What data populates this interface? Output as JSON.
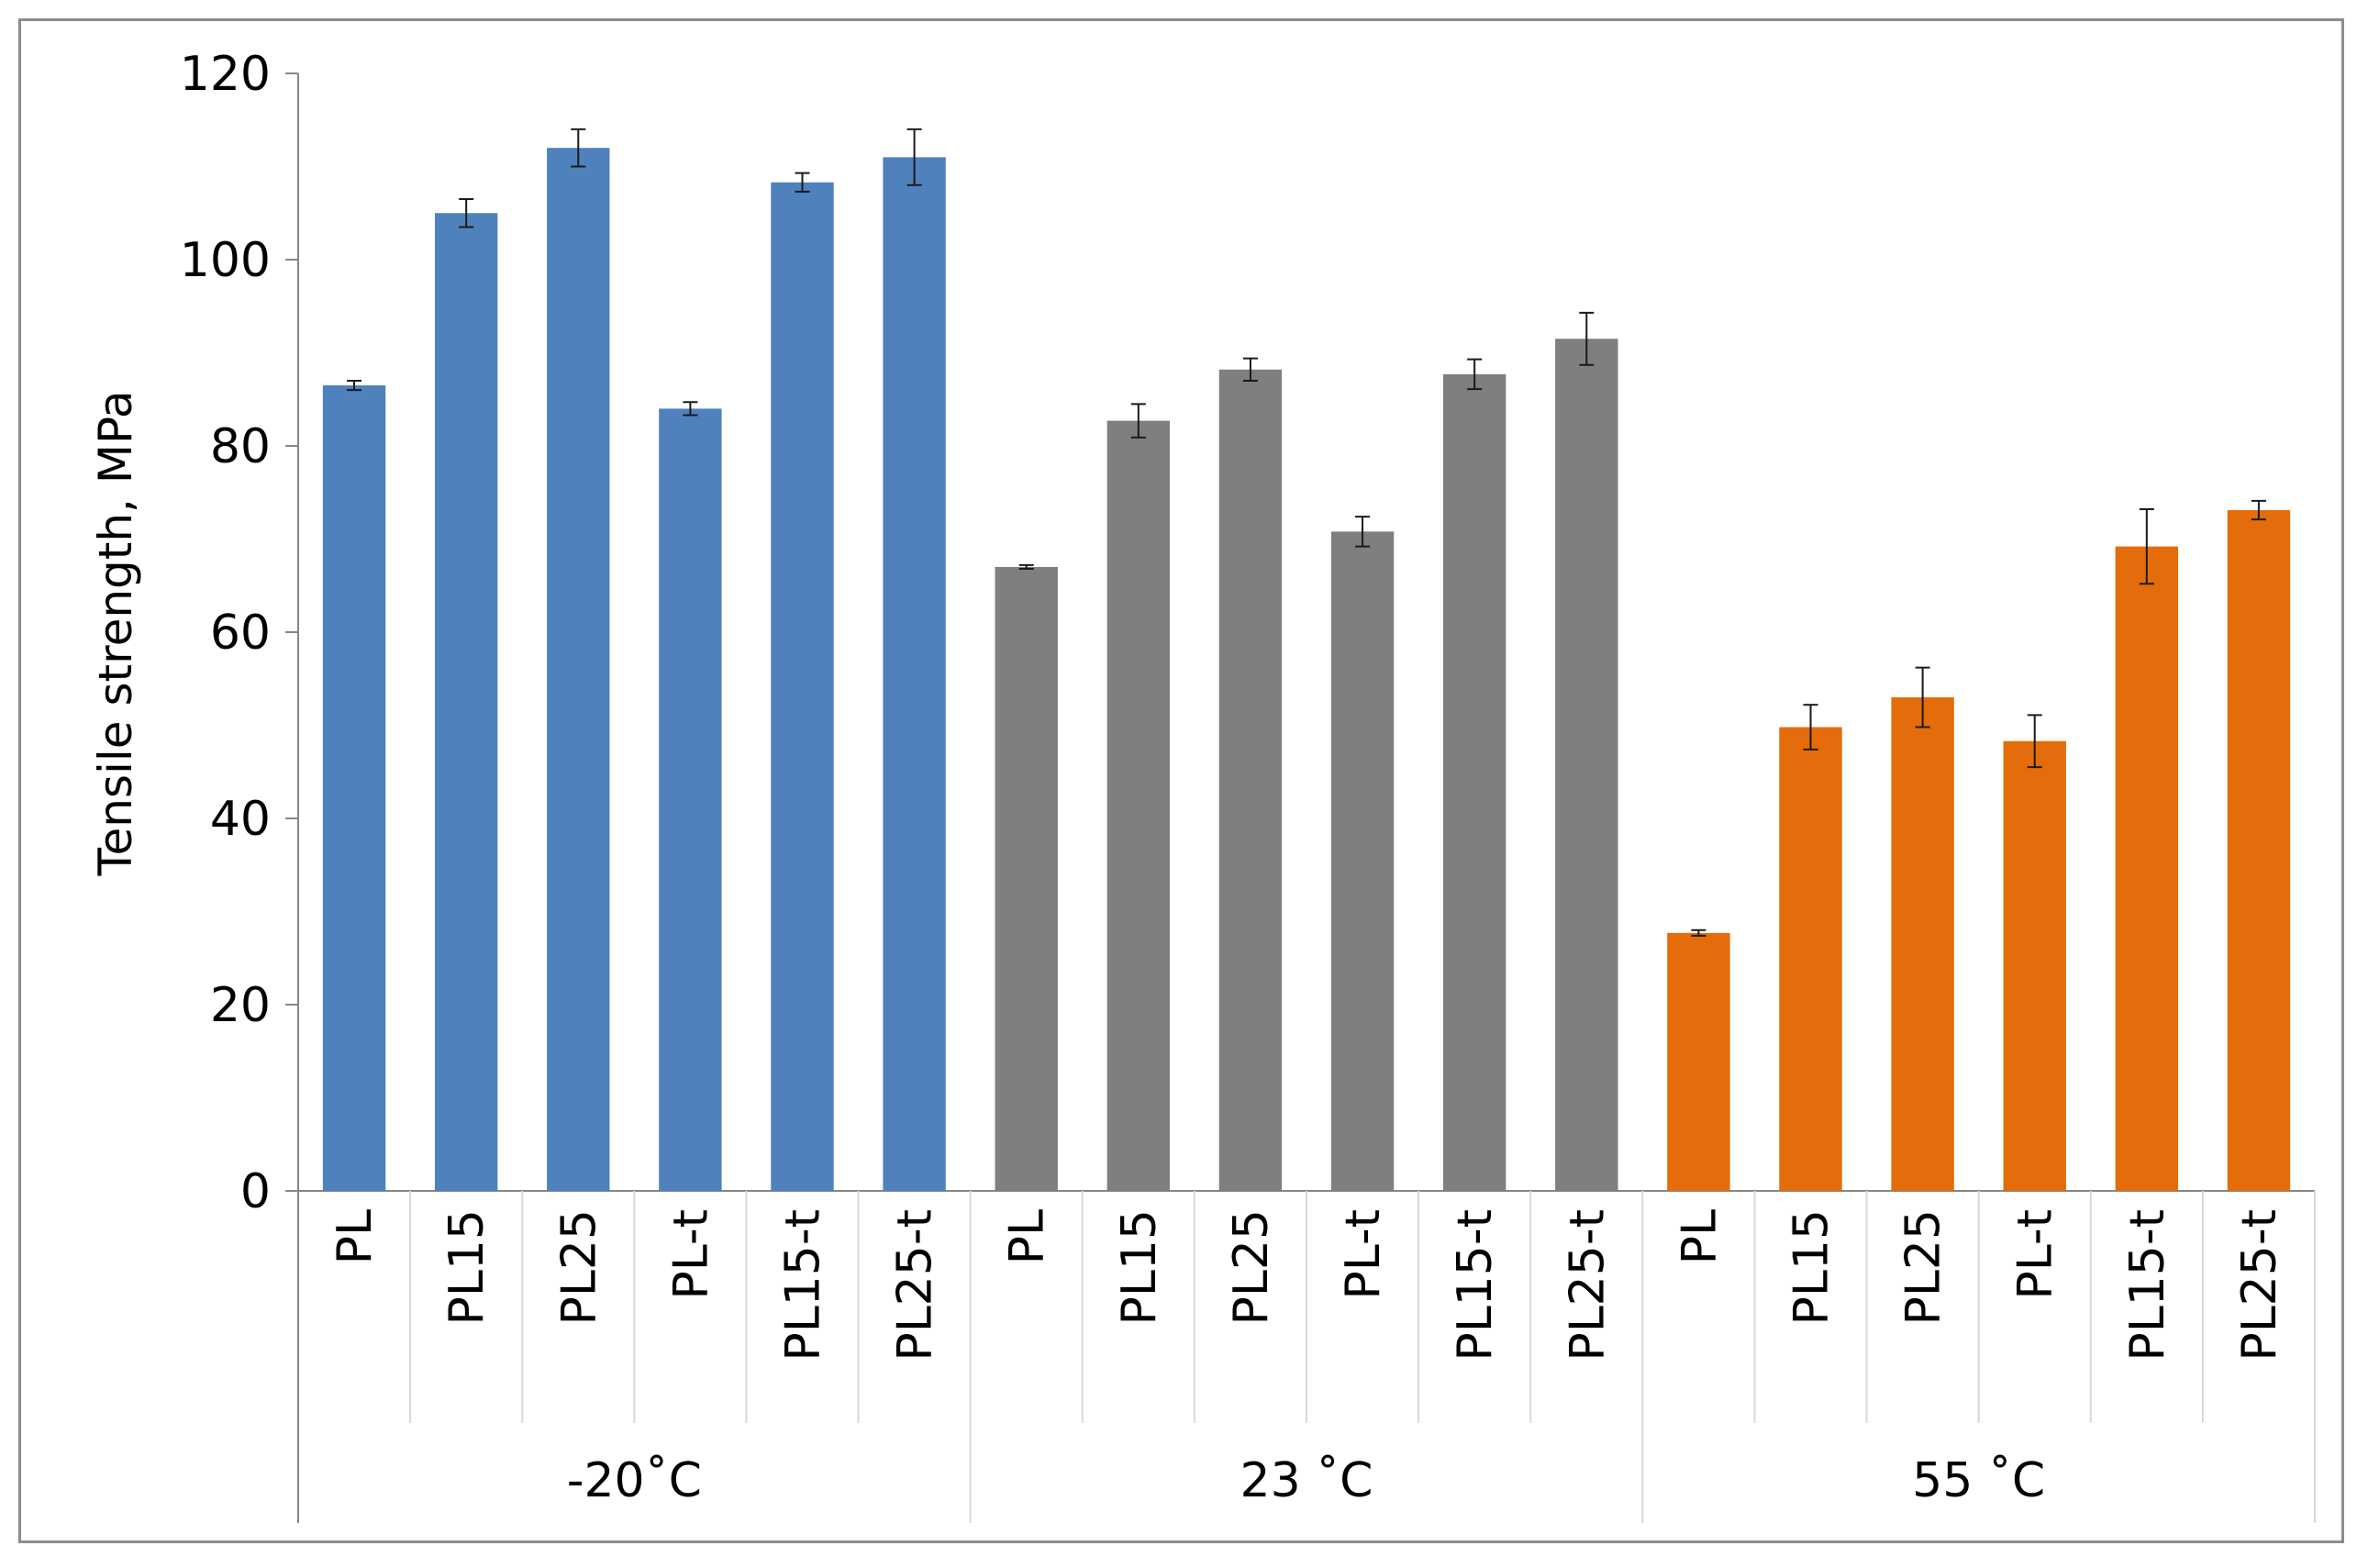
{
  "chart_data": {
    "type": "bar",
    "title": "",
    "xlabel": "",
    "ylabel": "Tensile strength, MPa",
    "ylim": [
      0,
      120
    ],
    "yticks": [
      0,
      20,
      40,
      60,
      80,
      100,
      120
    ],
    "grid": false,
    "legend": "none",
    "groups": [
      {
        "label": "-20˚C",
        "color": "#4f81bd",
        "categories": [
          "PL",
          "PL15",
          "PL25",
          "PL-t",
          "PL15-t",
          "PL25-t"
        ],
        "values": [
          86.5,
          105,
          112,
          84,
          108.3,
          111
        ],
        "errors": [
          0.5,
          1.5,
          2,
          0.7,
          1,
          3
        ]
      },
      {
        "label": "23 ˚C",
        "color": "#7f7f7f",
        "categories": [
          "PL",
          "PL15",
          "PL25",
          "PL-t",
          "PL15-t",
          "PL25-t"
        ],
        "values": [
          67,
          82.7,
          88.2,
          70.8,
          87.7,
          91.5
        ],
        "errors": [
          0.2,
          1.8,
          1.2,
          1.6,
          1.6,
          2.8
        ]
      },
      {
        "label": "55 ˚C",
        "color": "#e46c0a",
        "categories": [
          "PL",
          "PL15",
          "PL25",
          "PL-t",
          "PL15-t",
          "PL25-t"
        ],
        "values": [
          27.7,
          49.8,
          53,
          48.3,
          69.2,
          73.1
        ],
        "errors": [
          0.3,
          2.4,
          3.2,
          2.8,
          4,
          1
        ]
      }
    ]
  }
}
